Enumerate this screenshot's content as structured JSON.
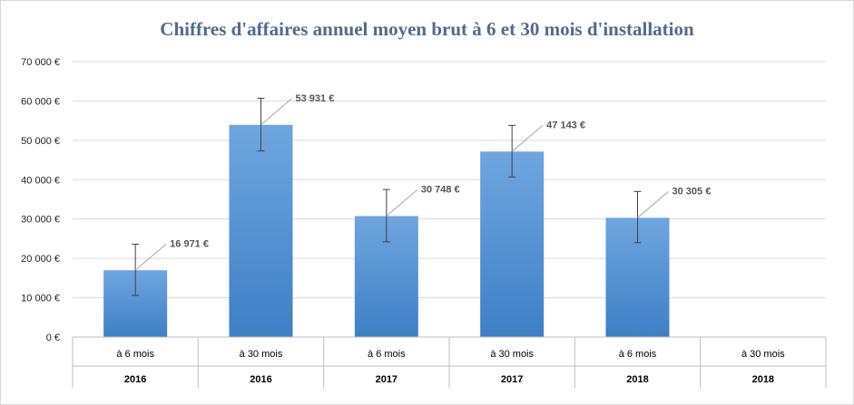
{
  "chart_data": {
    "type": "bar",
    "title": "Chiffres d'affaires annuel moyen brut à 6 et 30 mois d'installation",
    "xlabel": "",
    "ylabel": "",
    "ylim": [
      0,
      70000
    ],
    "yticks": [
      0,
      10000,
      20000,
      30000,
      40000,
      50000,
      60000,
      70000
    ],
    "ytick_labels": [
      "0 €",
      "10 000 €",
      "20 000 €",
      "30 000 €",
      "40 000 €",
      "50 000 €",
      "60 000 €",
      "70 000 €"
    ],
    "categories": [
      {
        "label": "à 6 mois",
        "group": "2016"
      },
      {
        "label": "à 30 mois",
        "group": "2016"
      },
      {
        "label": "à 6 mois",
        "group": "2017"
      },
      {
        "label": "à 30 mois",
        "group": "2017"
      },
      {
        "label": "à 6 mois",
        "group": "2018"
      },
      {
        "label": "à 30 mois",
        "group": "2018"
      }
    ],
    "values": [
      16971,
      53931,
      30748,
      47143,
      30305,
      null
    ],
    "data_labels": [
      "16 971 €",
      "53 931 €",
      "30 748 €",
      "47 143 €",
      "30 305 €",
      ""
    ],
    "error_bars": [
      {
        "low": 10600,
        "high": 23600
      },
      {
        "low": 47300,
        "high": 60700
      },
      {
        "low": 24200,
        "high": 37500
      },
      {
        "low": 40700,
        "high": 53800
      },
      {
        "low": 24000,
        "high": 37000
      },
      null
    ],
    "grid": true,
    "legend": "none",
    "colors": {
      "bar_top": "#6fa6df",
      "bar_bottom": "#3e7fc6",
      "grid": "#d9d9d9",
      "title": "#4f6b8f",
      "error_bar": "#404040",
      "leader_line": "#a6a6a6"
    }
  }
}
